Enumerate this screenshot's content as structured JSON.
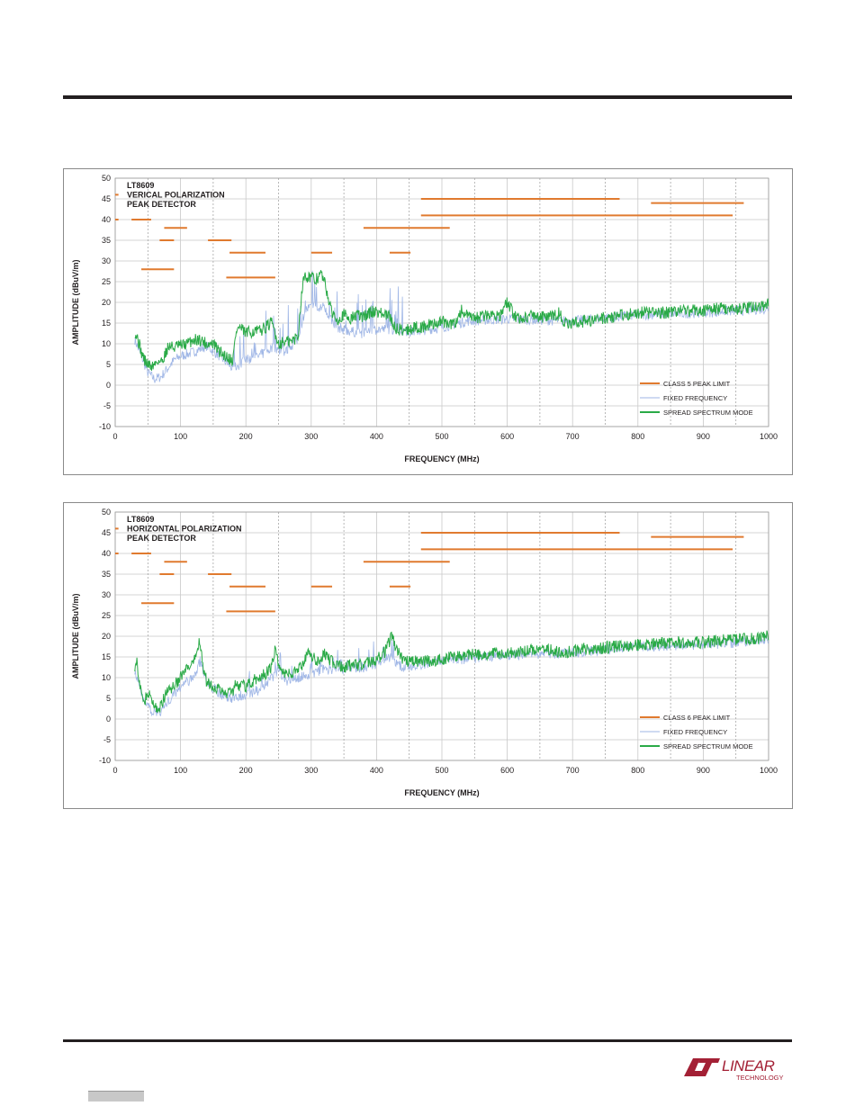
{
  "chart_data": [
    {
      "type": "line",
      "title_lines": [
        "LT8609",
        "VERICAL POLARIZATION",
        "PEAK DETECTOR"
      ],
      "xlabel": "FREQUENCY (MHz)",
      "ylabel": "AMPLITUDE (dBuV/m)",
      "xlim": [
        0,
        1000
      ],
      "ylim": [
        -10,
        50
      ],
      "xticks": [
        "0",
        "100",
        "200",
        "300",
        "400",
        "500",
        "600",
        "700",
        "800",
        "900",
        "1000"
      ],
      "yticks": [
        "50",
        "45",
        "40",
        "35",
        "30",
        "25",
        "20",
        "15",
        "10",
        "5",
        "0",
        "-5",
        "-10"
      ],
      "grid": true,
      "legend_position": "bottom-right",
      "legend": [
        "CLASS 5 PEAK LIMIT",
        "FIXED FREQUENCY",
        "SPREAD SPECTRUM MODE"
      ],
      "colors": {
        "limit": "#e07a2f",
        "fixed": "#9fb6e6",
        "spread": "#2aaa47"
      },
      "limit_segments": [
        {
          "x": [
            0,
            5
          ],
          "y": 46
        },
        {
          "x": [
            0,
            5
          ],
          "y": 40
        },
        {
          "x": [
            25,
            55
          ],
          "y": 40
        },
        {
          "x": [
            40,
            90
          ],
          "y": 28
        },
        {
          "x": [
            75,
            110
          ],
          "y": 38
        },
        {
          "x": [
            68,
            90
          ],
          "y": 35
        },
        {
          "x": [
            142,
            178
          ],
          "y": 35
        },
        {
          "x": [
            175,
            230
          ],
          "y": 32
        },
        {
          "x": [
            170,
            245
          ],
          "y": 26
        },
        {
          "x": [
            300,
            332
          ],
          "y": 32
        },
        {
          "x": [
            380,
            512
          ],
          "y": 38
        },
        {
          "x": [
            420,
            452
          ],
          "y": 32
        },
        {
          "x": [
            468,
            772
          ],
          "y": 45
        },
        {
          "x": [
            468,
            945
          ],
          "y": 41
        },
        {
          "x": [
            820,
            962
          ],
          "y": 44
        }
      ],
      "series": [
        {
          "name": "SPREAD SPECTRUM MODE",
          "x": [
            30,
            35,
            40,
            45,
            50,
            55,
            60,
            65,
            70,
            75,
            80,
            85,
            90,
            95,
            100,
            110,
            120,
            130,
            140,
            150,
            160,
            170,
            180,
            185,
            190,
            200,
            210,
            220,
            230,
            240,
            250,
            260,
            270,
            280,
            285,
            290,
            295,
            300,
            305,
            310,
            315,
            320,
            325,
            330,
            340,
            350,
            360,
            370,
            380,
            390,
            400,
            410,
            420,
            425,
            430,
            440,
            450,
            460,
            470,
            480,
            490,
            500,
            510,
            520,
            530,
            540,
            550,
            560,
            570,
            580,
            590,
            600,
            610,
            620,
            630,
            640,
            650,
            660,
            670,
            680,
            690,
            700,
            720,
            740,
            760,
            780,
            800,
            820,
            840,
            860,
            880,
            900,
            920,
            940,
            960,
            980,
            1000
          ],
          "y": [
            13,
            11,
            8,
            6,
            5,
            4.5,
            5,
            6,
            5.5,
            7,
            9,
            9.5,
            9,
            9.5,
            9.5,
            10,
            11,
            11,
            10,
            10,
            8,
            7,
            6,
            13,
            14,
            12.5,
            13,
            13,
            14,
            15,
            10,
            10.5,
            10.5,
            12,
            22,
            27,
            26,
            26.5,
            25,
            26,
            27,
            25,
            22,
            18,
            16,
            17,
            16,
            17,
            16.5,
            17.5,
            18,
            17,
            16.5,
            15,
            13.5,
            13.5,
            13.5,
            14,
            14,
            14.5,
            15,
            15.5,
            14.5,
            15,
            18,
            16.5,
            16,
            16.5,
            17,
            17,
            17,
            20,
            17,
            16,
            16.5,
            17,
            16.5,
            16.5,
            16.5,
            17.5,
            14.5,
            15,
            15.5,
            16,
            16.5,
            17,
            17.5,
            17.5,
            17.5,
            18,
            18,
            18,
            18.5,
            18.5,
            18.5,
            19,
            19.5
          ]
        },
        {
          "name": "FIXED FREQUENCY",
          "x": [
            30,
            40,
            50,
            60,
            70,
            80,
            90,
            100,
            120,
            140,
            160,
            180,
            200,
            220,
            240,
            260,
            280,
            290,
            300,
            310,
            320,
            330,
            340,
            360,
            380,
            400,
            420,
            440,
            460,
            480,
            500,
            540,
            600,
            700,
            800,
            900,
            1000
          ],
          "y": [
            11,
            7,
            3,
            1.5,
            2,
            4,
            6,
            7,
            8,
            9.5,
            7,
            4,
            6,
            7,
            9,
            8,
            11,
            18,
            19,
            18,
            19,
            16,
            14,
            13,
            12.5,
            13.5,
            13.5,
            13,
            13,
            13.5,
            14,
            15.5,
            16,
            15.5,
            17,
            17.5,
            18.5
          ]
        }
      ]
    },
    {
      "type": "line",
      "title_lines": [
        "LT8609",
        "HORIZONTAL POLARIZATION",
        "PEAK DETECTOR"
      ],
      "xlabel": "FREQUENCY (MHz)",
      "ylabel": "AMPLITUDE (dBuV/m)",
      "xlim": [
        0,
        1000
      ],
      "ylim": [
        -10,
        50
      ],
      "xticks": [
        "0",
        "100",
        "200",
        "300",
        "400",
        "500",
        "600",
        "700",
        "800",
        "900",
        "1000"
      ],
      "yticks": [
        "50",
        "45",
        "40",
        "35",
        "30",
        "25",
        "20",
        "15",
        "10",
        "5",
        "0",
        "-5",
        "-10"
      ],
      "grid": true,
      "legend_position": "bottom-right",
      "legend": [
        "CLASS 6 PEAK LIMIT",
        "FIXED FREQUENCY",
        "SPREAD SPECTRUM MODE"
      ],
      "colors": {
        "limit": "#e07a2f",
        "fixed": "#9fb6e6",
        "spread": "#2aaa47"
      },
      "limit_segments": [
        {
          "x": [
            0,
            5
          ],
          "y": 46
        },
        {
          "x": [
            0,
            5
          ],
          "y": 40
        },
        {
          "x": [
            25,
            55
          ],
          "y": 40
        },
        {
          "x": [
            40,
            90
          ],
          "y": 28
        },
        {
          "x": [
            75,
            110
          ],
          "y": 38
        },
        {
          "x": [
            68,
            90
          ],
          "y": 35
        },
        {
          "x": [
            142,
            178
          ],
          "y": 35
        },
        {
          "x": [
            175,
            230
          ],
          "y": 32
        },
        {
          "x": [
            170,
            245
          ],
          "y": 26
        },
        {
          "x": [
            300,
            332
          ],
          "y": 32
        },
        {
          "x": [
            380,
            512
          ],
          "y": 38
        },
        {
          "x": [
            420,
            452
          ],
          "y": 32
        },
        {
          "x": [
            468,
            772
          ],
          "y": 45
        },
        {
          "x": [
            468,
            945
          ],
          "y": 41
        },
        {
          "x": [
            820,
            962
          ],
          "y": 44
        }
      ],
      "series": [
        {
          "name": "SPREAD SPECTRUM MODE",
          "x": [
            30,
            33,
            36,
            40,
            45,
            50,
            55,
            60,
            65,
            70,
            75,
            80,
            90,
            100,
            110,
            120,
            125,
            130,
            135,
            140,
            150,
            160,
            170,
            180,
            185,
            190,
            200,
            210,
            220,
            230,
            240,
            245,
            250,
            260,
            270,
            280,
            290,
            295,
            300,
            310,
            320,
            325,
            330,
            340,
            350,
            360,
            370,
            380,
            390,
            400,
            410,
            415,
            420,
            425,
            430,
            440,
            450,
            460,
            470,
            480,
            490,
            500,
            520,
            540,
            560,
            580,
            600,
            620,
            640,
            660,
            680,
            700,
            720,
            740,
            760,
            780,
            800,
            820,
            840,
            860,
            880,
            900,
            920,
            940,
            960,
            980,
            1000
          ],
          "y": [
            13,
            15,
            9,
            6,
            4.5,
            6,
            5,
            3,
            2.5,
            3,
            5,
            7,
            8,
            10,
            12,
            13,
            17,
            19,
            12,
            9,
            8,
            7,
            6,
            7,
            9,
            8,
            8,
            9,
            10,
            11,
            13,
            17,
            13,
            11,
            11,
            12,
            14,
            16,
            15,
            14,
            16,
            15,
            14,
            13,
            12.5,
            13,
            13,
            13.5,
            14,
            14.5,
            15.5,
            17,
            19,
            20,
            17,
            14,
            14,
            14,
            14,
            14,
            14,
            14.5,
            15,
            15.5,
            15.5,
            16,
            16,
            16.5,
            16.5,
            17,
            16,
            16.5,
            17,
            17,
            17.5,
            17.5,
            18,
            18,
            18.5,
            18.5,
            18.5,
            18.5,
            19,
            19,
            19.5,
            19.5,
            20
          ]
        },
        {
          "name": "FIXED FREQUENCY",
          "x": [
            30,
            40,
            50,
            60,
            70,
            80,
            90,
            100,
            120,
            130,
            140,
            160,
            180,
            200,
            220,
            240,
            250,
            260,
            280,
            300,
            320,
            340,
            360,
            380,
            400,
            420,
            440,
            460,
            480,
            500,
            600,
            700,
            800,
            900,
            1000
          ],
          "y": [
            12,
            6,
            3,
            1.5,
            2,
            4,
            6,
            8,
            10,
            14,
            9,
            6,
            5,
            6,
            7,
            10,
            12,
            9,
            10,
            11,
            12,
            12,
            12,
            12.5,
            13,
            15,
            12.5,
            13,
            13.5,
            14,
            15.5,
            16,
            17.5,
            18,
            19
          ]
        }
      ]
    }
  ],
  "logo": {
    "text": "LINEAR",
    "subtext": "TECHNOLOGY"
  }
}
